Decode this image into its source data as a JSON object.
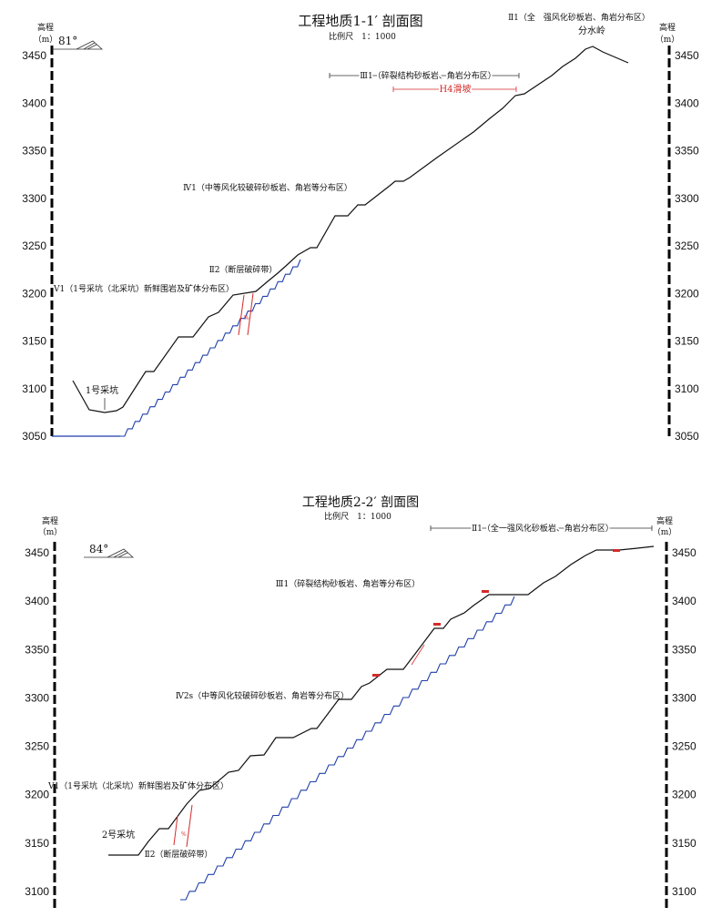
{
  "section1": {
    "title": "工程地质1-1′ 剖面图",
    "scale": "比例尺　1：1000",
    "elev_label": "高程",
    "unit_label": "（m）",
    "angle": "81°",
    "yticks": [
      3050,
      3100,
      3150,
      3200,
      3250,
      3300,
      3350,
      3400,
      3450
    ],
    "labels": {
      "zone_ii1": "Ⅱ1（全　强风化砂板岩、角岩分布区）",
      "divide": "分水岭",
      "zone_iii1": "Ⅲ1（碎裂结构砂板岩、角岩分布区）",
      "slide": "H4滑坡",
      "zone_iv1": "Ⅳ1（中等风化较破碎砂板岩、角岩等分布区）",
      "zone_ii2": "Ⅱ2（断层破碎带）",
      "zone_v1": "Ⅴ1（1号采坑（北采坑）新鲜围岩及矿体分布区）",
      "pit": "1号采坑"
    }
  },
  "section2": {
    "title": "工程地质2-2′ 剖面图",
    "scale": "比例尺　1：1000",
    "elev_label": "高程",
    "unit_label": "（m）",
    "angle": "84°",
    "yticks": [
      3100,
      3150,
      3200,
      3250,
      3300,
      3350,
      3400,
      3450
    ],
    "labels": {
      "zone_ii1": "Ⅱ1（全一强风化砂板岩、角岩分布区）",
      "zone_iii1": "Ⅲ1（碎裂结构砂板岩、角岩等分布区）",
      "zone_iv2": "Ⅳ2s（中等风化较破碎砂板岩、角岩等分布区）",
      "zone_v1": "Ⅴ1（1号采坑（北采坑）新鲜围岩及矿体分布区）",
      "pit": "2号采坑",
      "zone_ii2": "Ⅱ2（断层破碎带）"
    }
  },
  "colors": {
    "terrain": "#111111",
    "boundary": "#1f3fa8",
    "fault": "#d42a2a"
  }
}
